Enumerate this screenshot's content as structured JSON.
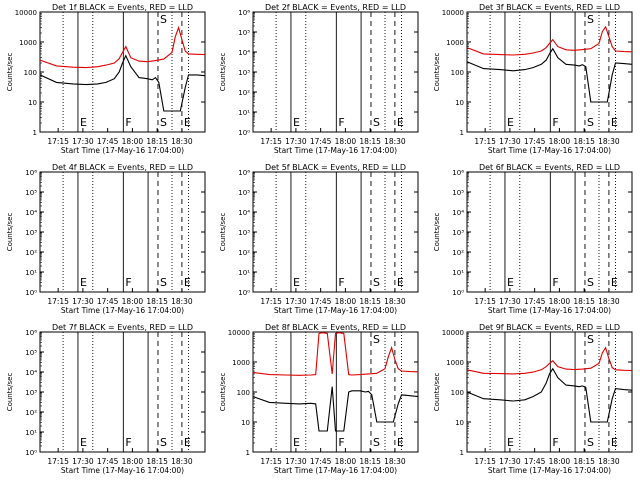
{
  "figure": {
    "xlabel": "Start Time (17-May-16 17:04:00)",
    "ylabel": "Counts/sec",
    "xticks": [
      {
        "label": "17:15",
        "t": 11
      },
      {
        "label": "17:30",
        "t": 26
      },
      {
        "label": "17:45",
        "t": 41
      },
      {
        "label": "18:00",
        "t": 56
      },
      {
        "label": "18:15",
        "t": 71
      },
      {
        "label": "18:30",
        "t": 86
      }
    ],
    "xlim": [
      0,
      100
    ],
    "vlines": [
      {
        "t": 14,
        "style": "dotted"
      },
      {
        "t": 23,
        "style": "solid",
        "marker": "E"
      },
      {
        "t": 32,
        "style": "dotted"
      },
      {
        "t": 50.5,
        "style": "solid",
        "marker": "F"
      },
      {
        "t": 65.5,
        "style": "solid"
      },
      {
        "t": 71.5,
        "style": "dashed",
        "marker": "S"
      },
      {
        "t": 80,
        "style": "dotted"
      },
      {
        "t": 86,
        "style": "dashed",
        "marker": "E"
      },
      {
        "t": 90,
        "style": "dotted"
      }
    ],
    "colors": {
      "events": "#000000",
      "lld": "#e00000",
      "axis": "#000000",
      "background": "#ffffff"
    }
  },
  "chart_data": [
    {
      "type": "line",
      "title": "Det 1f BLACK = Events, RED = LLD",
      "yscale": "log",
      "ylim": [
        1,
        10000
      ],
      "yticks": [
        "1",
        "10",
        "100",
        "1000",
        "10000"
      ],
      "has_data": true,
      "series": [
        {
          "name": "LLD",
          "color": "#e00000",
          "x": [
            0,
            10,
            20,
            28,
            35,
            40,
            45,
            48,
            50,
            52,
            55,
            60,
            65,
            70,
            75,
            80,
            82,
            84,
            86,
            88,
            90,
            95,
            100
          ],
          "values": [
            250,
            160,
            145,
            140,
            150,
            170,
            200,
            280,
            450,
            700,
            300,
            230,
            220,
            240,
            270,
            450,
            1500,
            3000,
            1200,
            500,
            400,
            390,
            380
          ]
        },
        {
          "name": "Events",
          "color": "#000000",
          "x": [
            0,
            10,
            20,
            28,
            35,
            40,
            45,
            48,
            50,
            52,
            55,
            60,
            65,
            68,
            70,
            72,
            75,
            85,
            88,
            90,
            95,
            100
          ],
          "values": [
            80,
            45,
            40,
            38,
            40,
            45,
            60,
            100,
            200,
            350,
            150,
            65,
            60,
            55,
            65,
            45,
            5,
            5,
            30,
            80,
            80,
            75
          ]
        }
      ]
    },
    {
      "type": "line",
      "title": "Det 2f BLACK = Events, RED = LLD",
      "yscale": "log",
      "ylim": [
        1,
        1000000
      ],
      "yticks": [
        "10⁰",
        "10¹",
        "10²",
        "10³",
        "10⁴",
        "10⁵",
        "10⁶"
      ],
      "has_data": false,
      "series": []
    },
    {
      "type": "line",
      "title": "Det 3f BLACK = Events, RED = LLD",
      "yscale": "log",
      "ylim": [
        1,
        10000
      ],
      "yticks": [
        "1",
        "10",
        "100",
        "1000",
        "10000"
      ],
      "has_data": true,
      "series": [
        {
          "name": "LLD",
          "color": "#e00000",
          "x": [
            0,
            10,
            20,
            28,
            35,
            40,
            45,
            48,
            50,
            52,
            55,
            60,
            65,
            70,
            75,
            80,
            82,
            84,
            86,
            88,
            90,
            95,
            100
          ],
          "values": [
            650,
            400,
            380,
            370,
            390,
            430,
            500,
            650,
            900,
            1200,
            700,
            550,
            530,
            560,
            600,
            900,
            2200,
            3200,
            1500,
            700,
            500,
            480,
            470
          ]
        },
        {
          "name": "Events",
          "color": "#000000",
          "x": [
            0,
            10,
            20,
            28,
            35,
            40,
            45,
            48,
            50,
            52,
            55,
            60,
            65,
            68,
            70,
            72,
            75,
            85,
            88,
            90,
            95,
            100
          ],
          "values": [
            220,
            130,
            120,
            110,
            120,
            140,
            180,
            250,
            400,
            600,
            300,
            180,
            170,
            160,
            175,
            150,
            10,
            10,
            80,
            200,
            190,
            180
          ]
        }
      ]
    },
    {
      "type": "line",
      "title": "Det 4f BLACK = Events, RED = LLD",
      "yscale": "log",
      "ylim": [
        1,
        1000000
      ],
      "yticks": [
        "10⁰",
        "10¹",
        "10²",
        "10³",
        "10⁴",
        "10⁵",
        "10⁶"
      ],
      "has_data": false,
      "series": []
    },
    {
      "type": "line",
      "title": "Det 5f BLACK = Events, RED = LLD",
      "yscale": "log",
      "ylim": [
        1,
        1000000
      ],
      "yticks": [
        "10⁰",
        "10¹",
        "10²",
        "10³",
        "10⁴",
        "10⁵",
        "10⁶"
      ],
      "has_data": false,
      "series": []
    },
    {
      "type": "line",
      "title": "Det 6f BLACK = Events, RED = LLD",
      "yscale": "log",
      "ylim": [
        1,
        1000000
      ],
      "yticks": [
        "10⁰",
        "10¹",
        "10²",
        "10³",
        "10⁴",
        "10⁵",
        "10⁶"
      ],
      "has_data": false,
      "series": []
    },
    {
      "type": "line",
      "title": "Det 7f BLACK = Events, RED = LLD",
      "yscale": "log",
      "ylim": [
        1,
        1000000
      ],
      "yticks": [
        "10⁰",
        "10¹",
        "10²",
        "10³",
        "10⁴",
        "10⁵",
        "10⁶"
      ],
      "has_data": false,
      "series": []
    },
    {
      "type": "line",
      "title": "Det 8f BLACK = Events, RED = LLD",
      "yscale": "log",
      "ylim": [
        1,
        10000
      ],
      "yticks": [
        "1",
        "10",
        "100",
        "1000",
        "10000"
      ],
      "has_data": true,
      "series": [
        {
          "name": "LLD",
          "color": "#e00000",
          "x": [
            0,
            10,
            20,
            28,
            35,
            38,
            40,
            42,
            45,
            48,
            50,
            52,
            55,
            58,
            60,
            65,
            70,
            75,
            80,
            82,
            84,
            86,
            88,
            90,
            95,
            100
          ],
          "values": [
            450,
            380,
            370,
            360,
            370,
            380,
            9000,
            9500,
            9000,
            400,
            9000,
            9500,
            9000,
            380,
            370,
            380,
            400,
            420,
            600,
            1500,
            3000,
            1200,
            600,
            500,
            480,
            470
          ]
        },
        {
          "name": "Events",
          "color": "#000000",
          "x": [
            0,
            10,
            20,
            28,
            35,
            38,
            40,
            42,
            45,
            48,
            50,
            52,
            55,
            58,
            60,
            65,
            68,
            70,
            72,
            75,
            85,
            88,
            90,
            95,
            100
          ],
          "values": [
            70,
            45,
            42,
            40,
            42,
            40,
            5,
            5,
            5,
            150,
            5,
            5,
            5,
            100,
            110,
            110,
            100,
            105,
            80,
            10,
            10,
            40,
            80,
            75,
            70
          ]
        }
      ]
    },
    {
      "type": "line",
      "title": "Det 9f BLACK = Events, RED = LLD",
      "yscale": "log",
      "ylim": [
        1,
        10000
      ],
      "yticks": [
        "1",
        "10",
        "100",
        "1000",
        "10000"
      ],
      "has_data": true,
      "series": [
        {
          "name": "LLD",
          "color": "#e00000",
          "x": [
            0,
            10,
            20,
            28,
            35,
            40,
            45,
            48,
            50,
            52,
            55,
            60,
            65,
            70,
            75,
            80,
            82,
            84,
            86,
            88,
            90,
            95,
            100
          ],
          "values": [
            550,
            420,
            410,
            400,
            420,
            460,
            550,
            700,
            900,
            1100,
            700,
            580,
            560,
            580,
            620,
            900,
            2000,
            3000,
            1300,
            650,
            550,
            530,
            520
          ]
        },
        {
          "name": "Events",
          "color": "#000000",
          "x": [
            0,
            10,
            20,
            28,
            35,
            40,
            45,
            48,
            50,
            52,
            55,
            60,
            65,
            68,
            70,
            72,
            75,
            85,
            88,
            90,
            95,
            100
          ],
          "values": [
            100,
            60,
            55,
            50,
            55,
            70,
            100,
            200,
            400,
            600,
            300,
            170,
            160,
            150,
            160,
            140,
            10,
            10,
            60,
            130,
            120,
            115
          ]
        }
      ]
    }
  ]
}
